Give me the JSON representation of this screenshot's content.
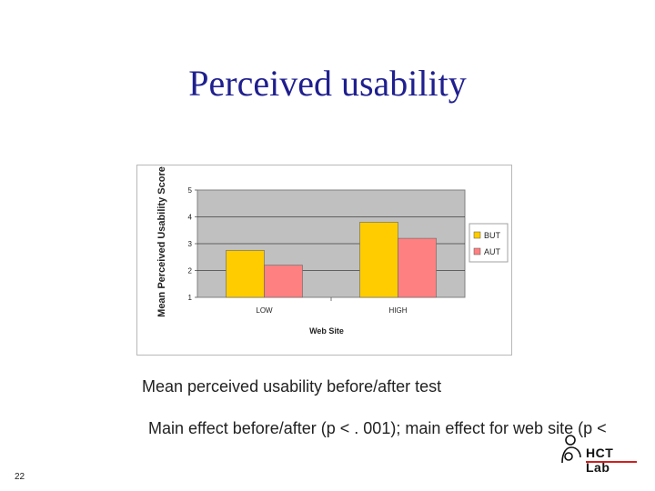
{
  "slide": {
    "title": "Perceived usability",
    "caption": "Mean perceived usability before/after test",
    "subcaption": "Main effect before/after (p < . 001); main effect for web site (p <",
    "slide_number": "22",
    "logo_text": "HCT Lab"
  },
  "colors": {
    "title": "#1f1f8f",
    "plot_bg": "#c0c0c0",
    "BUT": "#ffcc00",
    "AUT": "#ff8080",
    "logo_accent": "#d02020"
  },
  "chart_data": {
    "type": "bar",
    "title": "",
    "xlabel": "Web Site",
    "ylabel": "Mean Perceived Usability Score",
    "categories": [
      "LOW",
      "HIGH"
    ],
    "series": [
      {
        "name": "BUT",
        "values": [
          2.75,
          3.8
        ]
      },
      {
        "name": "AUT",
        "values": [
          2.2,
          3.2
        ]
      }
    ],
    "ylim": [
      1,
      5
    ],
    "yticks": [
      "1",
      "2",
      "3",
      "4",
      "5"
    ],
    "grid": true,
    "legend": "right"
  }
}
